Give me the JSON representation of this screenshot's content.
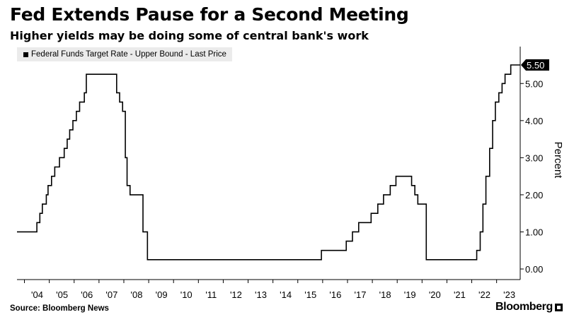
{
  "title": "Fed Extends Pause for a Second Meeting",
  "subtitle": "Higher yields may be doing some of central bank's work",
  "legend_label": "Federal Funds Target Rate - Upper Bound - Last Price",
  "last_price_label": "5.50",
  "source": "Source: Bloomberg News",
  "brand": "Bloomberg",
  "colors": {
    "line": "#000000",
    "legend_bg": "#ebebeb",
    "badge": "#000000",
    "badge_text": "#ffffff"
  },
  "chart_data": {
    "type": "line",
    "title": "Fed Extends Pause for a Second Meeting",
    "subtitle": "Higher yields may be doing some of central bank's work",
    "xlabel": "",
    "ylabel": "Percent",
    "ylim": [
      0,
      5.5
    ],
    "xlim": [
      2003.7,
      2023.95
    ],
    "grid": false,
    "legend_position": "top-left",
    "y_ticks": [
      {
        "value": 0,
        "label": "0.00"
      },
      {
        "value": 1,
        "label": "1.00"
      },
      {
        "value": 2,
        "label": "2.00"
      },
      {
        "value": 3,
        "label": "3.00"
      },
      {
        "value": 4,
        "label": "4.00"
      },
      {
        "value": 5,
        "label": "5.00"
      }
    ],
    "x_tick_labels": [
      {
        "year": 2004,
        "label": "'04"
      },
      {
        "year": 2005,
        "label": "'05"
      },
      {
        "year": 2006,
        "label": "'06"
      },
      {
        "year": 2007,
        "label": "'07"
      },
      {
        "year": 2008,
        "label": "'08"
      },
      {
        "year": 2009,
        "label": "'09"
      },
      {
        "year": 2010,
        "label": "'10"
      },
      {
        "year": 2011,
        "label": "'11"
      },
      {
        "year": 2012,
        "label": "'12"
      },
      {
        "year": 2013,
        "label": "'13"
      },
      {
        "year": 2014,
        "label": "'14"
      },
      {
        "year": 2015,
        "label": "'15"
      },
      {
        "year": 2016,
        "label": "'16"
      },
      {
        "year": 2017,
        "label": "'17"
      },
      {
        "year": 2018,
        "label": "'18"
      },
      {
        "year": 2019,
        "label": "'19"
      },
      {
        "year": 2020,
        "label": "'20"
      },
      {
        "year": 2021,
        "label": "'21"
      },
      {
        "year": 2022,
        "label": "'22"
      },
      {
        "year": 2023,
        "label": "'23"
      }
    ],
    "series": [
      {
        "name": "Federal Funds Target Rate - Upper Bound - Last Price",
        "last_value": 5.5,
        "points": [
          [
            2003.7,
            1.0
          ],
          [
            2004.5,
            1.0
          ],
          [
            2004.5,
            1.25
          ],
          [
            2004.62,
            1.25
          ],
          [
            2004.62,
            1.5
          ],
          [
            2004.72,
            1.5
          ],
          [
            2004.72,
            1.75
          ],
          [
            2004.88,
            1.75
          ],
          [
            2004.88,
            2.0
          ],
          [
            2004.95,
            2.0
          ],
          [
            2004.95,
            2.25
          ],
          [
            2005.09,
            2.25
          ],
          [
            2005.09,
            2.5
          ],
          [
            2005.22,
            2.5
          ],
          [
            2005.22,
            2.75
          ],
          [
            2005.41,
            2.75
          ],
          [
            2005.41,
            3.0
          ],
          [
            2005.6,
            3.0
          ],
          [
            2005.6,
            3.25
          ],
          [
            2005.72,
            3.25
          ],
          [
            2005.72,
            3.5
          ],
          [
            2005.82,
            3.5
          ],
          [
            2005.82,
            3.75
          ],
          [
            2005.95,
            3.75
          ],
          [
            2005.95,
            4.0
          ],
          [
            2006.09,
            4.0
          ],
          [
            2006.09,
            4.25
          ],
          [
            2006.22,
            4.25
          ],
          [
            2006.22,
            4.5
          ],
          [
            2006.41,
            4.5
          ],
          [
            2006.41,
            4.75
          ],
          [
            2006.49,
            4.75
          ],
          [
            2006.49,
            5.25
          ],
          [
            2007.71,
            5.25
          ],
          [
            2007.71,
            4.75
          ],
          [
            2007.83,
            4.75
          ],
          [
            2007.83,
            4.5
          ],
          [
            2007.95,
            4.5
          ],
          [
            2007.95,
            4.25
          ],
          [
            2008.06,
            4.25
          ],
          [
            2008.06,
            3.0
          ],
          [
            2008.13,
            3.0
          ],
          [
            2008.13,
            2.25
          ],
          [
            2008.25,
            2.25
          ],
          [
            2008.25,
            2.0
          ],
          [
            2008.77,
            2.0
          ],
          [
            2008.77,
            1.0
          ],
          [
            2008.95,
            1.0
          ],
          [
            2008.95,
            0.25
          ],
          [
            2015.95,
            0.25
          ],
          [
            2015.95,
            0.5
          ],
          [
            2016.95,
            0.5
          ],
          [
            2016.95,
            0.75
          ],
          [
            2017.2,
            0.75
          ],
          [
            2017.2,
            1.0
          ],
          [
            2017.45,
            1.0
          ],
          [
            2017.45,
            1.25
          ],
          [
            2017.95,
            1.25
          ],
          [
            2017.95,
            1.5
          ],
          [
            2018.22,
            1.5
          ],
          [
            2018.22,
            1.75
          ],
          [
            2018.45,
            1.75
          ],
          [
            2018.45,
            2.0
          ],
          [
            2018.72,
            2.0
          ],
          [
            2018.72,
            2.25
          ],
          [
            2018.95,
            2.25
          ],
          [
            2018.95,
            2.5
          ],
          [
            2019.58,
            2.5
          ],
          [
            2019.58,
            2.25
          ],
          [
            2019.71,
            2.25
          ],
          [
            2019.71,
            2.0
          ],
          [
            2019.83,
            2.0
          ],
          [
            2019.83,
            1.75
          ],
          [
            2020.17,
            1.75
          ],
          [
            2020.17,
            0.25
          ],
          [
            2022.2,
            0.25
          ],
          [
            2022.2,
            0.5
          ],
          [
            2022.34,
            0.5
          ],
          [
            2022.34,
            1.0
          ],
          [
            2022.45,
            1.0
          ],
          [
            2022.45,
            1.75
          ],
          [
            2022.57,
            1.75
          ],
          [
            2022.57,
            2.5
          ],
          [
            2022.72,
            2.5
          ],
          [
            2022.72,
            3.25
          ],
          [
            2022.84,
            3.25
          ],
          [
            2022.84,
            4.0
          ],
          [
            2022.95,
            4.0
          ],
          [
            2022.95,
            4.5
          ],
          [
            2023.09,
            4.5
          ],
          [
            2023.09,
            4.75
          ],
          [
            2023.22,
            4.75
          ],
          [
            2023.22,
            5.0
          ],
          [
            2023.34,
            5.0
          ],
          [
            2023.34,
            5.25
          ],
          [
            2023.57,
            5.25
          ],
          [
            2023.57,
            5.5
          ],
          [
            2023.95,
            5.5
          ]
        ]
      }
    ]
  }
}
